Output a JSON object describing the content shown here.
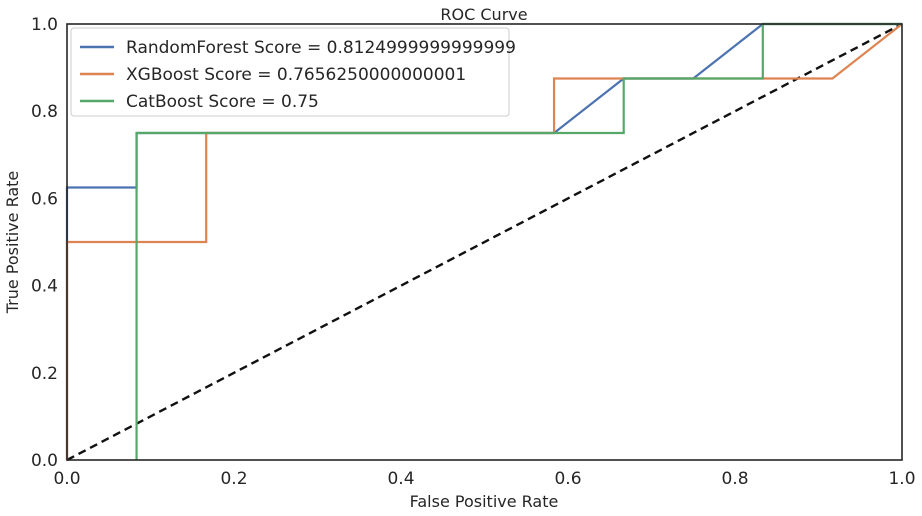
{
  "chart_data": {
    "type": "line",
    "title": "ROC Curve",
    "xlabel": "False Positive Rate",
    "ylabel": "True Positive Rate",
    "xlim": [
      0,
      1
    ],
    "ylim": [
      0,
      1
    ],
    "x_ticks": [
      "0.0",
      "0.2",
      "0.4",
      "0.6",
      "0.8",
      "1.0"
    ],
    "y_ticks": [
      "0.0",
      "0.2",
      "0.4",
      "0.6",
      "0.8",
      "1.0"
    ],
    "grid": false,
    "legend_position": "upper-left",
    "series": [
      {
        "name": "RandomForest Score = 0.8124999999999999",
        "color": "#4c72b0",
        "x": [
          0,
          0,
          0.0833,
          0.0833,
          0.5833,
          0.6667,
          0.75,
          0.8333,
          1.0
        ],
        "y": [
          0,
          0.625,
          0.625,
          0.75,
          0.75,
          0.875,
          0.875,
          1.0,
          1.0
        ]
      },
      {
        "name": "XGBoost Score = 0.7656250000000001",
        "color": "#dd8452",
        "x": [
          0,
          0,
          0.1667,
          0.1667,
          0.5833,
          0.5833,
          0.9167,
          1.0
        ],
        "y": [
          0,
          0.5,
          0.5,
          0.75,
          0.75,
          0.875,
          0.875,
          1.0
        ]
      },
      {
        "name": "CatBoost Score = 0.75",
        "color": "#55a868",
        "x": [
          0.0833,
          0.0833,
          0.6667,
          0.6667,
          0.8333,
          0.8333,
          1.0
        ],
        "y": [
          0,
          0.75,
          0.75,
          0.875,
          0.875,
          1.0,
          1.0
        ]
      }
    ],
    "reference_line": {
      "style": "dashed",
      "color": "#111111",
      "x": [
        0,
        1
      ],
      "y": [
        0,
        1
      ]
    }
  }
}
